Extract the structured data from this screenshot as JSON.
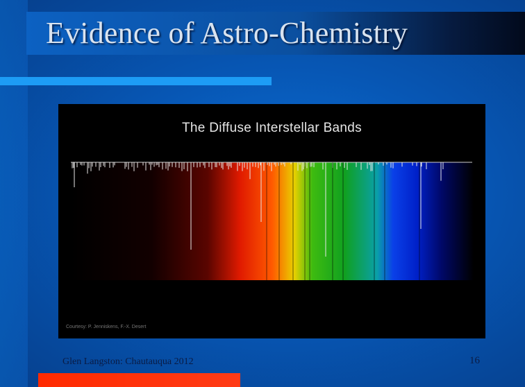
{
  "slide": {
    "title": "Evidence of Astro-Chemistry",
    "footer": "Glen Langston: Chautauqua 2012",
    "page_number": "16"
  },
  "figure": {
    "title": "The Diffuse Interstellar Bands",
    "courtesy": "Courtesy: P. Jenniskens, F.-X. Desert"
  },
  "colors": {
    "background": "#0757b5",
    "accent_bar": "#1d9cf5",
    "bottom_bar": "#ff2a00",
    "title_text": "#d9e3ef",
    "footer_text": "#0a1b44"
  }
}
